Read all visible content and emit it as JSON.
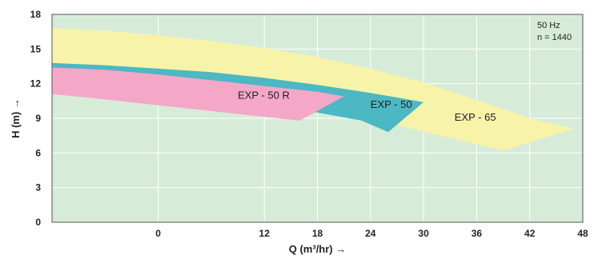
{
  "chart_data": {
    "type": "area",
    "xlabel": "Q (m³/hr) →",
    "ylabel": "H (m) →",
    "xlim": [
      -12,
      48
    ],
    "ylim": [
      0,
      18
    ],
    "x_ticks": [
      0,
      12,
      18,
      24,
      30,
      36,
      42,
      48
    ],
    "x_tick_labels": [
      "0",
      "12",
      "18",
      "24",
      "30",
      "36",
      "42",
      "48"
    ],
    "y_ticks": [
      0,
      3,
      6,
      9,
      12,
      15,
      18
    ],
    "y_tick_labels": [
      "0",
      "3",
      "6",
      "9",
      "12",
      "15",
      "18"
    ],
    "grid": true,
    "annotations": [
      "50 Hz",
      "n = 1440"
    ],
    "series": [
      {
        "name": "EXP - 65",
        "color": "#f7f3a8",
        "polygon": [
          [
            -12,
            16.8
          ],
          [
            -6,
            16.6
          ],
          [
            0,
            16.2
          ],
          [
            6,
            15.7
          ],
          [
            12,
            15.1
          ],
          [
            18,
            14.3
          ],
          [
            24,
            13.3
          ],
          [
            30,
            12.1
          ],
          [
            36,
            10.6
          ],
          [
            42,
            9.0
          ],
          [
            47,
            8.1
          ],
          [
            39,
            6.2
          ],
          [
            33,
            7.3
          ],
          [
            27,
            8.4
          ],
          [
            21,
            9.6
          ],
          [
            15,
            10.8
          ],
          [
            9,
            11.5
          ],
          [
            3,
            12.0
          ],
          [
            -3,
            12.5
          ],
          [
            -12,
            12.8
          ]
        ],
        "label_at": [
          33.5,
          8.8
        ]
      },
      {
        "name": "EXP - 50",
        "color": "#4bb8c4",
        "polygon": [
          [
            -12,
            13.8
          ],
          [
            -6,
            13.6
          ],
          [
            0,
            13.3
          ],
          [
            6,
            13.0
          ],
          [
            12,
            12.5
          ],
          [
            18,
            11.9
          ],
          [
            24,
            11.2
          ],
          [
            30,
            10.4
          ],
          [
            26,
            7.8
          ],
          [
            23,
            8.8
          ],
          [
            18,
            9.5
          ],
          [
            10,
            10.5
          ],
          [
            0,
            11.6
          ],
          [
            -12,
            12.4
          ]
        ],
        "label_at": [
          24,
          9.9
        ]
      },
      {
        "name": "EXP - 50 R",
        "color": "#f4a7c7",
        "polygon": [
          [
            -12,
            13.4
          ],
          [
            -6,
            13.2
          ],
          [
            0,
            12.8
          ],
          [
            6,
            12.3
          ],
          [
            12,
            11.8
          ],
          [
            18,
            11.3
          ],
          [
            21,
            10.9
          ],
          [
            16,
            8.8
          ],
          [
            10,
            9.3
          ],
          [
            4,
            9.8
          ],
          [
            -2,
            10.3
          ],
          [
            -8,
            10.8
          ],
          [
            -12,
            11.1
          ]
        ],
        "label_at": [
          9,
          10.7
        ]
      }
    ]
  }
}
